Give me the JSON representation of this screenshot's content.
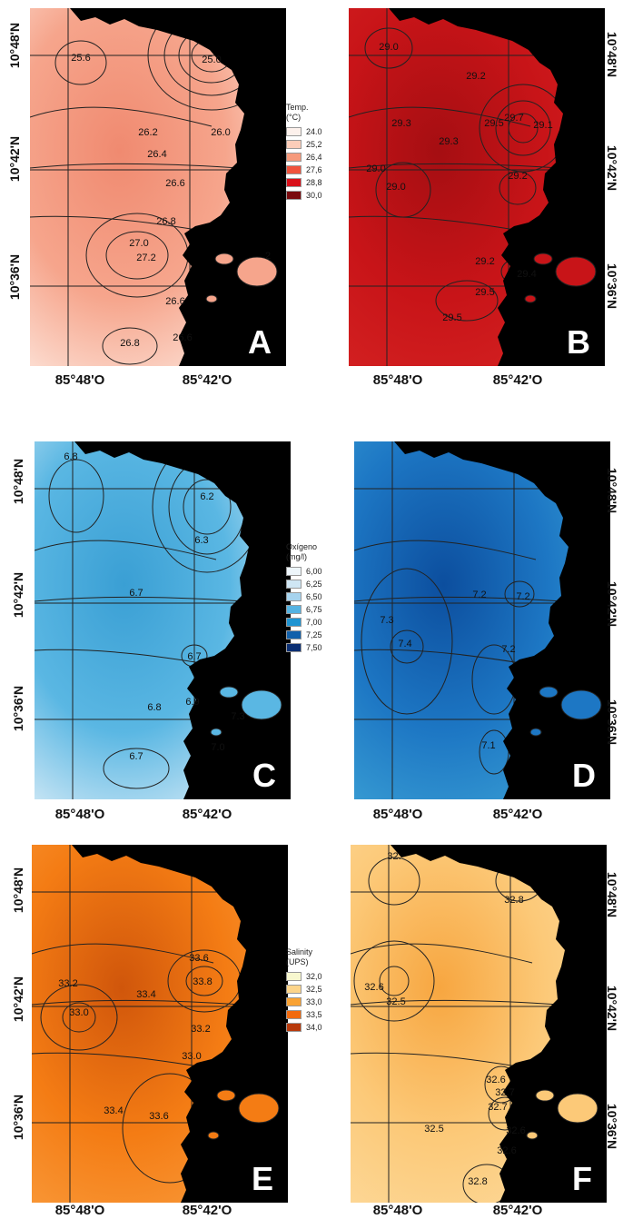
{
  "lat_labels": [
    "10°48'N",
    "10°42'N",
    "10°36'N"
  ],
  "lon_labels": [
    "85°48'O",
    "85°42'O"
  ],
  "panels": [
    {
      "letter": "A",
      "colors": {
        "base": "#f6a58c",
        "light": "#fde6dc",
        "dark": "#f08a70"
      },
      "contours": [
        "25.6",
        "25.0",
        "26.2",
        "26.0",
        "26.4",
        "26.6",
        "26.8",
        "27.0",
        "27.2",
        "26.6",
        "26.6",
        "26.8",
        "2"
      ]
    },
    {
      "letter": "B",
      "colors": {
        "base": "#c81418",
        "light": "#d42222",
        "dark": "#a50e12"
      },
      "contours": [
        "29.0",
        "29.2",
        "29.3",
        "29.3",
        "29.5",
        "29.7",
        "29.1",
        "29.0",
        "29.0",
        "29.2",
        "29.2",
        "29.5",
        "29.4",
        "29.5"
      ]
    },
    {
      "letter": "C",
      "colors": {
        "base": "#5ab7e3",
        "light": "#d9ecf7",
        "dark": "#3a9fd4"
      },
      "contours": [
        "6.8",
        "6.2",
        "6.3",
        "6.7",
        "6.7",
        "6.8",
        "6.9",
        "7.0",
        "7.3",
        "6.7"
      ]
    },
    {
      "letter": "D",
      "colors": {
        "base": "#1d77c4",
        "light": "#3a9fd4",
        "dark": "#0c4e9e"
      },
      "contours": [
        "7.3",
        "7.4",
        "7.2",
        "7.2",
        "7.2",
        "7.1"
      ]
    },
    {
      "letter": "E",
      "colors": {
        "base": "#f47c14",
        "light": "#f99a3a",
        "dark": "#d0560b"
      },
      "contours": [
        "33.6",
        "33.8",
        "33.4",
        "33.2",
        "33.0",
        "33.2",
        "33.0",
        "33.4",
        "33.6"
      ]
    },
    {
      "letter": "F",
      "colors": {
        "base": "#fcc978",
        "light": "#fdd99a",
        "dark": "#f7a640"
      },
      "contours": [
        "32.",
        "32.8",
        "32.6",
        "32.5",
        "32.6",
        "32.7",
        "32.7",
        "32.5",
        "32.6",
        "32.6",
        "32.8"
      ]
    }
  ],
  "legends": [
    {
      "title": "Temp.",
      "unit": "(°C)",
      "items": [
        {
          "label": "24.0",
          "color": "#fdf1ec"
        },
        {
          "label": "25,2",
          "color": "#fbcdb9"
        },
        {
          "label": "26,4",
          "color": "#f69a7c"
        },
        {
          "label": "27,6",
          "color": "#f0533d"
        },
        {
          "label": "28,8",
          "color": "#d9101a"
        },
        {
          "label": "30,0",
          "color": "#7a0a0e"
        }
      ]
    },
    {
      "title": "Oxígeno",
      "unit": "(mg/l)",
      "items": [
        {
          "label": "6,00",
          "color": "#eef6fb"
        },
        {
          "label": "6,25",
          "color": "#cfe6f4"
        },
        {
          "label": "6,50",
          "color": "#a6d3ee"
        },
        {
          "label": "6,75",
          "color": "#55b3e2"
        },
        {
          "label": "7,00",
          "color": "#1f94d2"
        },
        {
          "label": "7,25",
          "color": "#1261ab"
        },
        {
          "label": "7,50",
          "color": "#0b2f73"
        }
      ]
    },
    {
      "title": "Salinity",
      "unit": "(UPS)",
      "items": [
        {
          "label": "32,0",
          "color": "#f8f8cf"
        },
        {
          "label": "32,5",
          "color": "#fcd48a"
        },
        {
          "label": "33,0",
          "color": "#f9a233"
        },
        {
          "label": "33,5",
          "color": "#f26a0e"
        },
        {
          "label": "34,0",
          "color": "#b83a0c"
        }
      ]
    }
  ]
}
